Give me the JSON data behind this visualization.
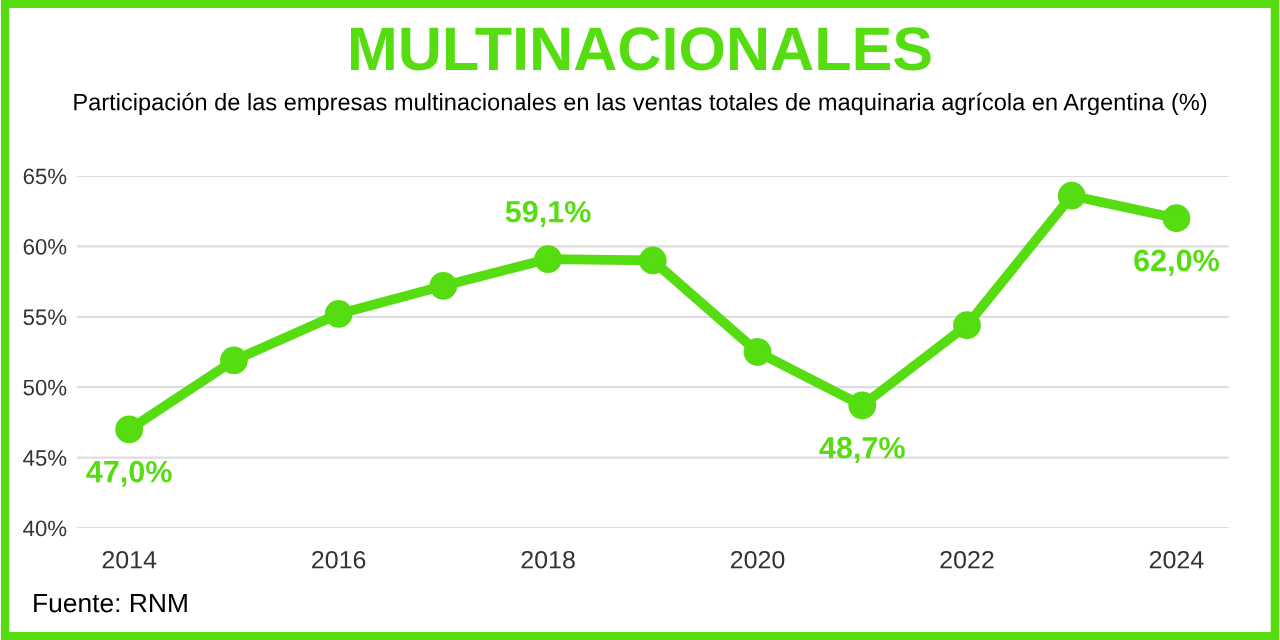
{
  "chart_data": {
    "type": "line",
    "title": "MULTINACIONALES",
    "subtitle": "Participación de las empresas multinacionales en las ventas totales de maquinaria agrícola en Argentina (%)",
    "x": [
      2014,
      2015,
      2016,
      2017,
      2018,
      2019,
      2020,
      2021,
      2022,
      2023,
      2024
    ],
    "series": [
      {
        "color": "#55dd11",
        "values": [
          47.0,
          51.9,
          55.2,
          57.2,
          59.1,
          59.0,
          52.5,
          48.7,
          54.4,
          63.6,
          62.0
        ],
        "value_labels": [
          "47,0%",
          null,
          null,
          null,
          "59,1%",
          null,
          null,
          "48,7%",
          null,
          null,
          "62,0%"
        ]
      }
    ],
    "xlim": [
      2013.5,
      2024.5
    ],
    "xticks": [
      2014,
      2016,
      2018,
      2020,
      2022,
      2024
    ],
    "ylim": [
      40,
      65
    ],
    "yticks": [
      {
        "value": 40,
        "label": "40%"
      },
      {
        "value": 45,
        "label": "45%"
      },
      {
        "value": 50,
        "label": "50%"
      },
      {
        "value": 55,
        "label": "55%"
      },
      {
        "value": 60,
        "label": "60%"
      },
      {
        "value": 65,
        "label": "65%"
      }
    ],
    "grid": "y",
    "marker": "circle",
    "line_style": "solid",
    "legend": false,
    "annotations": [
      "Fuente: RNM"
    ]
  }
}
